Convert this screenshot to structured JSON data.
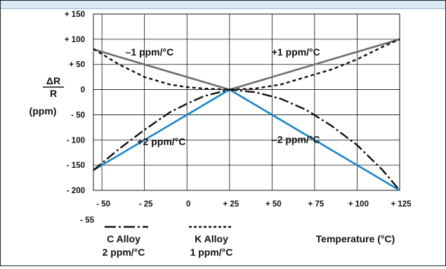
{
  "chart_data": {
    "type": "line",
    "xlabel": "Temperature (°C)",
    "ylabel_top": "ΔR",
    "ylabel_bottom": "R",
    "ylabel_unit": "(ppm)",
    "xlim": [
      -55,
      125
    ],
    "ylim": [
      -200,
      150
    ],
    "x_ticks": [
      {
        "v": -50,
        "label": "- 50"
      },
      {
        "v": -25,
        "label": "- 25"
      },
      {
        "v": 0,
        "label": "0"
      },
      {
        "v": 25,
        "label": "+ 25"
      },
      {
        "v": 50,
        "label": "+ 50"
      },
      {
        "v": 75,
        "label": "+ 75"
      },
      {
        "v": 100,
        "label": "+ 100"
      },
      {
        "v": 125,
        "label": "+ 125"
      }
    ],
    "x_extra_label": "- 55",
    "y_ticks": [
      {
        "v": 150,
        "label": "+ 150"
      },
      {
        "v": 100,
        "label": "+ 100"
      },
      {
        "v": 50,
        "label": "+ 50"
      },
      {
        "v": 0,
        "label": "0"
      },
      {
        "v": -50,
        "label": "- 50"
      },
      {
        "v": -100,
        "label": "- 100"
      },
      {
        "v": -150,
        "label": "- 150"
      },
      {
        "v": -200,
        "label": "- 200"
      }
    ],
    "series": [
      {
        "name": "+1 ppm/°C",
        "style": "solid",
        "color": "#6e6e6e",
        "x": [
          25,
          125
        ],
        "y": [
          0,
          100
        ]
      },
      {
        "name": "–1 ppm/°C",
        "style": "solid",
        "color": "#6e6e6e",
        "x": [
          -55,
          25
        ],
        "y": [
          80,
          0
        ]
      },
      {
        "name": "+2 ppm/°C",
        "style": "solid",
        "color": "#1b86c8",
        "x": [
          -55,
          25
        ],
        "y": [
          -160,
          0
        ]
      },
      {
        "name": "–2 ppm/°C",
        "style": "solid",
        "color": "#1b86c8",
        "x": [
          25,
          125
        ],
        "y": [
          0,
          -200
        ]
      },
      {
        "name": "K Alloy",
        "style": "dashed",
        "color": "#111111",
        "x": [
          -55,
          -40,
          -25,
          -10,
          0,
          10,
          25,
          40,
          55,
          70,
          85,
          100,
          115,
          125
        ],
        "y": [
          81,
          50,
          25,
          10,
          5,
          2,
          0,
          2,
          10,
          25,
          40,
          60,
          85,
          100
        ]
      },
      {
        "name": "C Alloy",
        "style": "dashdot",
        "color": "#111111",
        "x": [
          -55,
          -40,
          -25,
          -10,
          0,
          10,
          25,
          40,
          55,
          70,
          85,
          100,
          115,
          125
        ],
        "y": [
          -160,
          -118,
          -80,
          -45,
          -28,
          -13,
          0,
          -5,
          -18,
          -40,
          -72,
          -110,
          -160,
          -200
        ]
      }
    ],
    "annotations": [
      {
        "text": "–1 ppm/°C",
        "x": -22,
        "y": 68
      },
      {
        "text": "+1 ppm/°C",
        "x": 64,
        "y": 68
      },
      {
        "text": "+2 ppm/°C",
        "x": -15,
        "y": -110
      },
      {
        "text": "–2 ppm/°C",
        "x": 64,
        "y": -106
      }
    ],
    "legend": [
      {
        "line_style": "dashdot",
        "line1": "C Alloy",
        "line2": "2 ppm/°C"
      },
      {
        "line_style": "dashed",
        "line1": "K Alloy",
        "line2": "1 ppm/°C"
      }
    ],
    "grid": true
  }
}
